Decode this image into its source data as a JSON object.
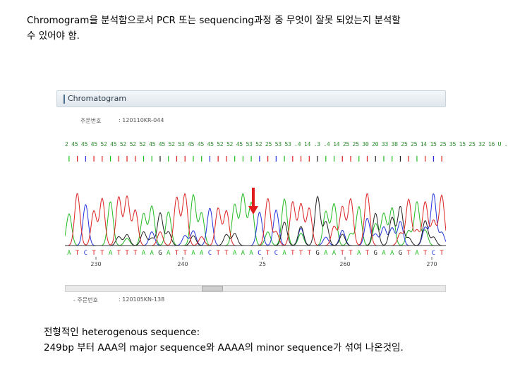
{
  "slide": {
    "top_line1": "Chromogram을 분석함으로서 PCR 또는 sequencing과정 중 무엇이 잘못 되었는지 분석할",
    "top_line2": "수 있어야 함.",
    "bottom_line1": "전형적인 heterogenous sequence:",
    "bottom_line2": "249bp 부터 AAA의 major sequence와 AAAA의 minor sequence가 섞여 나온것임."
  },
  "panel": {
    "title": "Chromatogram",
    "order_label_1": "주문번호",
    "order_value_1": ": 120110KR-044",
    "order_label_2": "- 주문번호",
    "order_value_2": ": 120105KN-138"
  },
  "chromatogram": {
    "quality_scores": "2 45 45  45 52 45 52 52 52 45 45 52 53  45 45 45 52 52 45 53 52 25 53 53 .4  14 .3 .4 14 25 25 30 20 33 38 25 25 14 15 25 35 15 25 32 16 U .",
    "bases": [
      "A",
      "T",
      "C",
      "T",
      "T",
      "A",
      "T",
      "T",
      "T",
      "A",
      "A",
      "G",
      "A",
      "T",
      "T",
      "A",
      "A",
      "C",
      "T",
      "T",
      "A",
      "A",
      "A",
      "C",
      "T",
      "C",
      "A",
      "T",
      "T",
      "T",
      "G",
      "A",
      "A",
      "T",
      "T",
      "A",
      "T",
      "G",
      "A",
      "A",
      "G",
      "T",
      "A",
      "T",
      "C",
      "T"
    ],
    "position_labels": [
      "230",
      "240",
      "250",
      "260",
      "270"
    ],
    "position_label_near_mix": "25",
    "colors": {
      "A": "#22bb22",
      "C": "#2233dd",
      "G": "#222222",
      "T": "#dd2222"
    }
  },
  "arrow": {
    "color": "#e11b1b"
  }
}
